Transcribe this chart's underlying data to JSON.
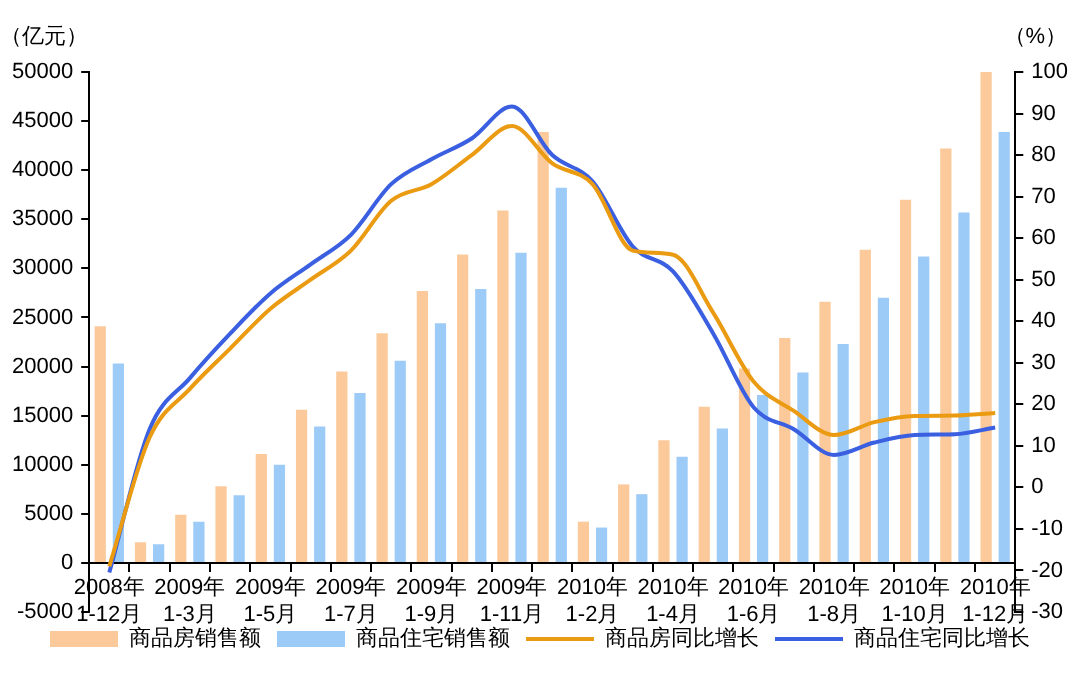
{
  "chart_data": {
    "type": "bar",
    "ylabel": "（亿元）",
    "y2label": "（%）",
    "categories": [
      "2008年\n1-12月",
      null,
      "2009年\n1-3月",
      null,
      "2009年\n1-5月",
      null,
      "2009年\n1-7月",
      null,
      "2009年\n1-9月",
      null,
      "2009年\n1-11月",
      null,
      "2010年\n1-2月",
      null,
      "2010年\n1-4月",
      null,
      "2010年\n1-6月",
      null,
      "2010年\n1-8月",
      null,
      "2010年\n1-10月",
      null,
      "2010年\n1-12月"
    ],
    "series": [
      {
        "name": "商品房销售额",
        "color": "#fcc99a",
        "values": [
          24100,
          2100,
          4900,
          7800,
          11100,
          15600,
          19500,
          23400,
          27700,
          31400,
          35900,
          43900,
          4200,
          8000,
          12500,
          15900,
          19800,
          22900,
          26600,
          31900,
          37000,
          42200,
          50000
        ]
      },
      {
        "name": "商品住宅销售额",
        "color": "#9dcbf7",
        "values": [
          20300,
          1900,
          4200,
          6900,
          10000,
          13900,
          17300,
          20600,
          24400,
          27900,
          31600,
          38200,
          3600,
          7000,
          10800,
          13700,
          17100,
          19400,
          22300,
          27000,
          31200,
          35700,
          43900
        ]
      },
      {
        "name": "商品房同比增长",
        "type": "line",
        "axis": "y2",
        "color": "#ea9b12",
        "values": [
          -19,
          12,
          23.7,
          33.4,
          43,
          50,
          57,
          69,
          73,
          80,
          87,
          78,
          73,
          57,
          56,
          42,
          25.5,
          18.4,
          12.6,
          15.7,
          17.2,
          17.3,
          17.9
        ]
      },
      {
        "name": "商品住宅同比增长",
        "type": "line",
        "axis": "y2",
        "color": "#3a5fe0",
        "values": [
          -20.5,
          14,
          26.3,
          37,
          46.7,
          53.7,
          60.8,
          73,
          79,
          84,
          91.7,
          80,
          73.7,
          58,
          52,
          37,
          19.3,
          14,
          7.8,
          10.8,
          12.6,
          12.8,
          14.4
        ]
      }
    ],
    "ylim": [
      -5000,
      50000
    ],
    "yticks": [
      -5000,
      0,
      5000,
      10000,
      15000,
      20000,
      25000,
      30000,
      35000,
      40000,
      45000,
      50000
    ],
    "y2lim": [
      -30,
      100
    ],
    "y2ticks": [
      -30,
      -20,
      -10,
      0,
      10,
      20,
      30,
      40,
      50,
      60,
      70,
      80,
      90,
      100
    ],
    "grid": false,
    "legend": "bottom",
    "marker": "none",
    "line_style": "solid"
  }
}
